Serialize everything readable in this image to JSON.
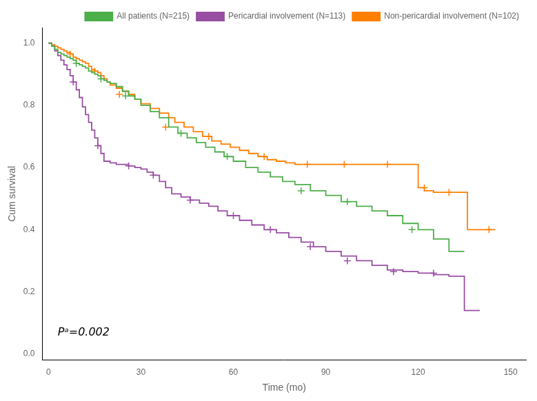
{
  "chart_data": {
    "type": "line",
    "line_style": "step",
    "marker": "+",
    "xlabel": "Time (mo)",
    "ylabel": "Cum survival",
    "xlim": [
      -2,
      155
    ],
    "ylim": [
      -0.02,
      1.05
    ],
    "xticks": [
      0,
      30,
      60,
      90,
      120,
      150
    ],
    "yticks": [
      {
        "value": 0,
        "label": "0.0"
      },
      0.2,
      0.4,
      0.6,
      0.8,
      {
        "value": 1,
        "label": "1.0"
      }
    ],
    "grid": false,
    "legend": "upper right",
    "annotations": [
      {
        "text": "Pᵃ=0.002",
        "x": 3,
        "y": 0.06
      }
    ],
    "series": [
      {
        "name": "All patients (N=215)",
        "color": "#4daf4a",
        "x": [
          0,
          1,
          2,
          3,
          4,
          5,
          6,
          7,
          8,
          9,
          10,
          11,
          12,
          13,
          14,
          15,
          16,
          17,
          18,
          19,
          20,
          22,
          24,
          26,
          28,
          30,
          33,
          36,
          39,
          42,
          45,
          48,
          51,
          54,
          57,
          60,
          64,
          68,
          72,
          76,
          80,
          85,
          90,
          95,
          100,
          105,
          110,
          115,
          120,
          125,
          130,
          135
        ],
        "values": [
          1.0,
          0.99,
          0.98,
          0.97,
          0.965,
          0.96,
          0.955,
          0.95,
          0.945,
          0.935,
          0.93,
          0.925,
          0.92,
          0.91,
          0.905,
          0.9,
          0.895,
          0.885,
          0.88,
          0.875,
          0.87,
          0.86,
          0.845,
          0.83,
          0.82,
          0.8,
          0.78,
          0.76,
          0.73,
          0.71,
          0.695,
          0.68,
          0.665,
          0.65,
          0.635,
          0.62,
          0.6,
          0.585,
          0.57,
          0.555,
          0.545,
          0.525,
          0.51,
          0.49,
          0.475,
          0.46,
          0.445,
          0.42,
          0.4,
          0.37,
          0.33,
          0.33
        ],
        "censor_x": [
          9,
          17,
          25,
          43,
          58,
          82,
          97,
          118
        ],
        "censor_values": [
          0.935,
          0.885,
          0.83,
          0.71,
          0.635,
          0.525,
          0.49,
          0.4
        ]
      },
      {
        "name": "Pericardial involvement (N=113)",
        "color": "#984ea3",
        "x": [
          0,
          1,
          2,
          3,
          4,
          5,
          6,
          7,
          8,
          9,
          10,
          11,
          12,
          13,
          14,
          15,
          16,
          17,
          18,
          20,
          22,
          24,
          26,
          28,
          30,
          32,
          34,
          36,
          38,
          40,
          43,
          46,
          49,
          52,
          55,
          58,
          62,
          66,
          70,
          74,
          78,
          82,
          86,
          90,
          95,
          100,
          105,
          110,
          115,
          120,
          125,
          130,
          135,
          140
        ],
        "values": [
          1.0,
          0.99,
          0.975,
          0.96,
          0.945,
          0.93,
          0.915,
          0.895,
          0.875,
          0.85,
          0.825,
          0.795,
          0.77,
          0.745,
          0.72,
          0.695,
          0.67,
          0.645,
          0.62,
          0.615,
          0.61,
          0.61,
          0.605,
          0.6,
          0.595,
          0.585,
          0.575,
          0.555,
          0.535,
          0.515,
          0.505,
          0.495,
          0.485,
          0.475,
          0.46,
          0.445,
          0.43,
          0.415,
          0.4,
          0.39,
          0.375,
          0.36,
          0.345,
          0.33,
          0.315,
          0.3,
          0.285,
          0.27,
          0.265,
          0.26,
          0.255,
          0.25,
          0.14,
          0.14
        ],
        "censor_x": [
          8,
          16,
          26,
          34,
          46,
          60,
          72,
          85,
          97,
          112,
          125
        ],
        "censor_values": [
          0.875,
          0.67,
          0.605,
          0.575,
          0.495,
          0.445,
          0.4,
          0.345,
          0.3,
          0.265,
          0.26
        ]
      },
      {
        "name": "Non-pericardial involvement (N=102)",
        "color": "#ff7f00",
        "x": [
          0,
          1,
          2,
          3,
          4,
          5,
          6,
          7,
          8,
          9,
          10,
          11,
          12,
          13,
          14,
          15,
          16,
          17,
          18,
          19,
          20,
          22,
          24,
          26,
          28,
          30,
          33,
          36,
          39,
          41,
          44,
          47,
          50,
          53,
          56,
          59,
          62,
          65,
          68,
          71,
          74,
          77,
          80,
          84,
          88,
          92,
          96,
          100,
          104,
          108,
          112,
          116,
          120,
          122,
          125,
          128,
          132,
          136,
          140,
          145
        ],
        "values": [
          1.0,
          0.995,
          0.99,
          0.985,
          0.98,
          0.975,
          0.97,
          0.965,
          0.955,
          0.95,
          0.945,
          0.94,
          0.935,
          0.925,
          0.915,
          0.91,
          0.905,
          0.895,
          0.885,
          0.875,
          0.865,
          0.855,
          0.845,
          0.835,
          0.82,
          0.805,
          0.79,
          0.775,
          0.76,
          0.745,
          0.73,
          0.715,
          0.7,
          0.685,
          0.675,
          0.665,
          0.655,
          0.645,
          0.635,
          0.625,
          0.62,
          0.615,
          0.61,
          0.61,
          0.61,
          0.61,
          0.61,
          0.61,
          0.61,
          0.61,
          0.61,
          0.61,
          0.535,
          0.525,
          0.52,
          0.52,
          0.52,
          0.4,
          0.4,
          0.4
        ],
        "censor_x": [
          7,
          15,
          23,
          38,
          52,
          70,
          84,
          96,
          110,
          122,
          130,
          143
        ],
        "censor_values": [
          0.965,
          0.91,
          0.835,
          0.73,
          0.7,
          0.635,
          0.61,
          0.61,
          0.61,
          0.535,
          0.52,
          0.4
        ]
      }
    ]
  }
}
